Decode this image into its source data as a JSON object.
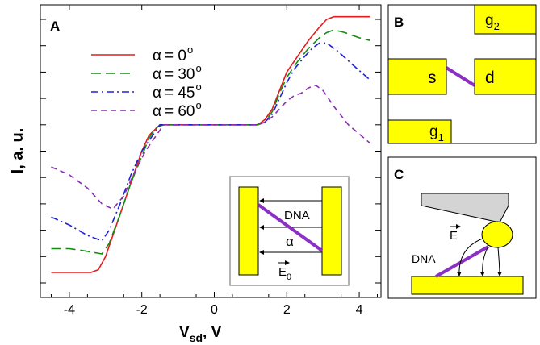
{
  "panels": {
    "a": "A",
    "b": "B",
    "c": "C"
  },
  "chart_data": {
    "type": "line",
    "title": "",
    "xlabel_main": "V",
    "xlabel_sub": "sd",
    "xlabel_unit": ", V",
    "ylabel": "I, a. u.",
    "xlim": [
      -4.8,
      4.6
    ],
    "ylim": [
      0,
      1
    ],
    "x_ticks": [
      -4,
      -2,
      0,
      2,
      4
    ],
    "x_tick_labels": [
      "-4",
      "-2",
      "0",
      "2",
      "4"
    ],
    "y_tick_labels_shown": false,
    "grid": false,
    "legend_position": "top-left",
    "series": [
      {
        "name": "α =   0°",
        "legend_alpha": "α",
        "legend_eq": "=   0",
        "legend_deg": "o",
        "color": "#e8191b",
        "dash": "",
        "x": [
          -4.5,
          -3.4,
          -3.2,
          -3.0,
          -2.8,
          -2.5,
          -2.2,
          -2.0,
          -1.8,
          -1.5,
          -1.4,
          1.2,
          1.4,
          1.6,
          1.8,
          2.0,
          2.3,
          2.6,
          2.9,
          3.1,
          3.3,
          3.5,
          4.3
        ],
        "y": [
          0.04,
          0.04,
          0.05,
          0.1,
          0.18,
          0.3,
          0.42,
          0.5,
          0.56,
          0.6,
          0.6,
          0.6,
          0.62,
          0.66,
          0.73,
          0.8,
          0.86,
          0.92,
          0.97,
          1.0,
          1.01,
          1.01,
          1.01
        ]
      },
      {
        "name": "α = 30°",
        "legend_alpha": "α",
        "legend_eq": "= 30",
        "legend_deg": "o",
        "color": "#138a13",
        "dash": "12,6",
        "x": [
          -4.5,
          -4.0,
          -3.5,
          -3.1,
          -2.9,
          -2.6,
          -2.3,
          -2.0,
          -1.8,
          -1.6,
          -1.4,
          1.2,
          1.4,
          1.6,
          1.8,
          2.0,
          2.3,
          2.6,
          2.9,
          3.1,
          3.3,
          3.6,
          4.0,
          4.3
        ],
        "y": [
          0.13,
          0.13,
          0.12,
          0.11,
          0.15,
          0.26,
          0.38,
          0.48,
          0.55,
          0.59,
          0.6,
          0.6,
          0.61,
          0.65,
          0.72,
          0.78,
          0.84,
          0.89,
          0.93,
          0.95,
          0.96,
          0.95,
          0.93,
          0.92
        ]
      },
      {
        "name": "α = 45°",
        "legend_alpha": "α",
        "legend_eq": "= 45",
        "legend_deg": "o",
        "color": "#2020d8",
        "dash": "9,4,2,4",
        "x": [
          -4.5,
          -4.0,
          -3.5,
          -3.1,
          -2.9,
          -2.6,
          -2.3,
          -2.0,
          -1.7,
          -1.5,
          -1.3,
          1.2,
          1.4,
          1.6,
          1.8,
          2.0,
          2.2,
          2.5,
          2.7,
          2.9,
          3.1,
          3.4,
          3.8,
          4.3
        ],
        "y": [
          0.25,
          0.22,
          0.18,
          0.16,
          0.2,
          0.3,
          0.41,
          0.5,
          0.56,
          0.6,
          0.6,
          0.6,
          0.61,
          0.64,
          0.7,
          0.76,
          0.81,
          0.86,
          0.89,
          0.91,
          0.91,
          0.88,
          0.83,
          0.77
        ]
      },
      {
        "name": "α = 60°",
        "legend_alpha": "α",
        "legend_eq": "= 60",
        "legend_deg": "o",
        "color": "#8a2fb0",
        "dash": "7,5",
        "x": [
          -4.5,
          -4.0,
          -3.5,
          -3.1,
          -2.8,
          -2.5,
          -2.2,
          -1.9,
          -1.6,
          -1.4,
          1.2,
          1.4,
          1.6,
          1.8,
          2.0,
          2.2,
          2.4,
          2.6,
          2.8,
          3.0,
          3.3,
          3.7,
          4.3
        ],
        "y": [
          0.44,
          0.41,
          0.36,
          0.3,
          0.28,
          0.33,
          0.42,
          0.5,
          0.56,
          0.6,
          0.6,
          0.61,
          0.63,
          0.66,
          0.69,
          0.71,
          0.72,
          0.74,
          0.75,
          0.73,
          0.67,
          0.6,
          0.53
        ]
      }
    ]
  },
  "inset": {
    "dna_label": "DNA",
    "alpha_label": "α",
    "field_label": "E",
    "field_sub": "0"
  },
  "panel_b": {
    "source_label": "s",
    "drain_label": "d",
    "gate1_label": "g",
    "gate1_sub": "1",
    "gate2_label": "g",
    "gate2_sub": "2"
  },
  "panel_c": {
    "field_label": "E",
    "dna_label": "DNA"
  },
  "colors": {
    "electrode": "#ffff00",
    "dna": "#8c2fc4",
    "tip": "#d4d4d4"
  }
}
